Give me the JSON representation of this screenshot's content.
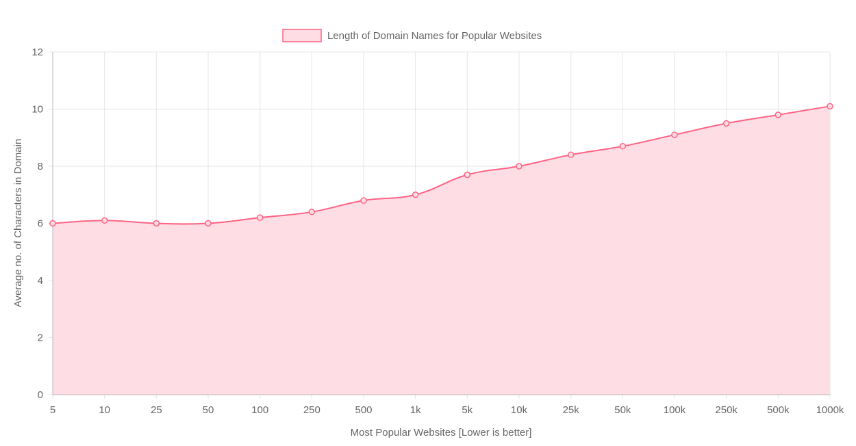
{
  "chart_data": {
    "type": "area",
    "categories": [
      "5",
      "10",
      "25",
      "50",
      "100",
      "250",
      "500",
      "1k",
      "5k",
      "10k",
      "25k",
      "50k",
      "100k",
      "250k",
      "500k",
      "1000k"
    ],
    "series": [
      {
        "name": "Length of Domain Names for Popular Websites",
        "values": [
          6.0,
          6.1,
          6.0,
          6.0,
          6.2,
          6.4,
          6.8,
          7.0,
          7.7,
          8.0,
          8.4,
          8.7,
          9.1,
          9.5,
          9.8,
          10.1
        ],
        "line_color": "#ff6384",
        "fill_color": "#ffdde4"
      }
    ],
    "xlabel": "Most Popular Websites [Lower is better]",
    "ylabel": "Average no. of Characters in Domain",
    "ylim": [
      0,
      12
    ],
    "yticks": [
      "0",
      "2",
      "4",
      "6",
      "8",
      "10",
      "12"
    ],
    "grid": true,
    "legend_position": "top"
  }
}
